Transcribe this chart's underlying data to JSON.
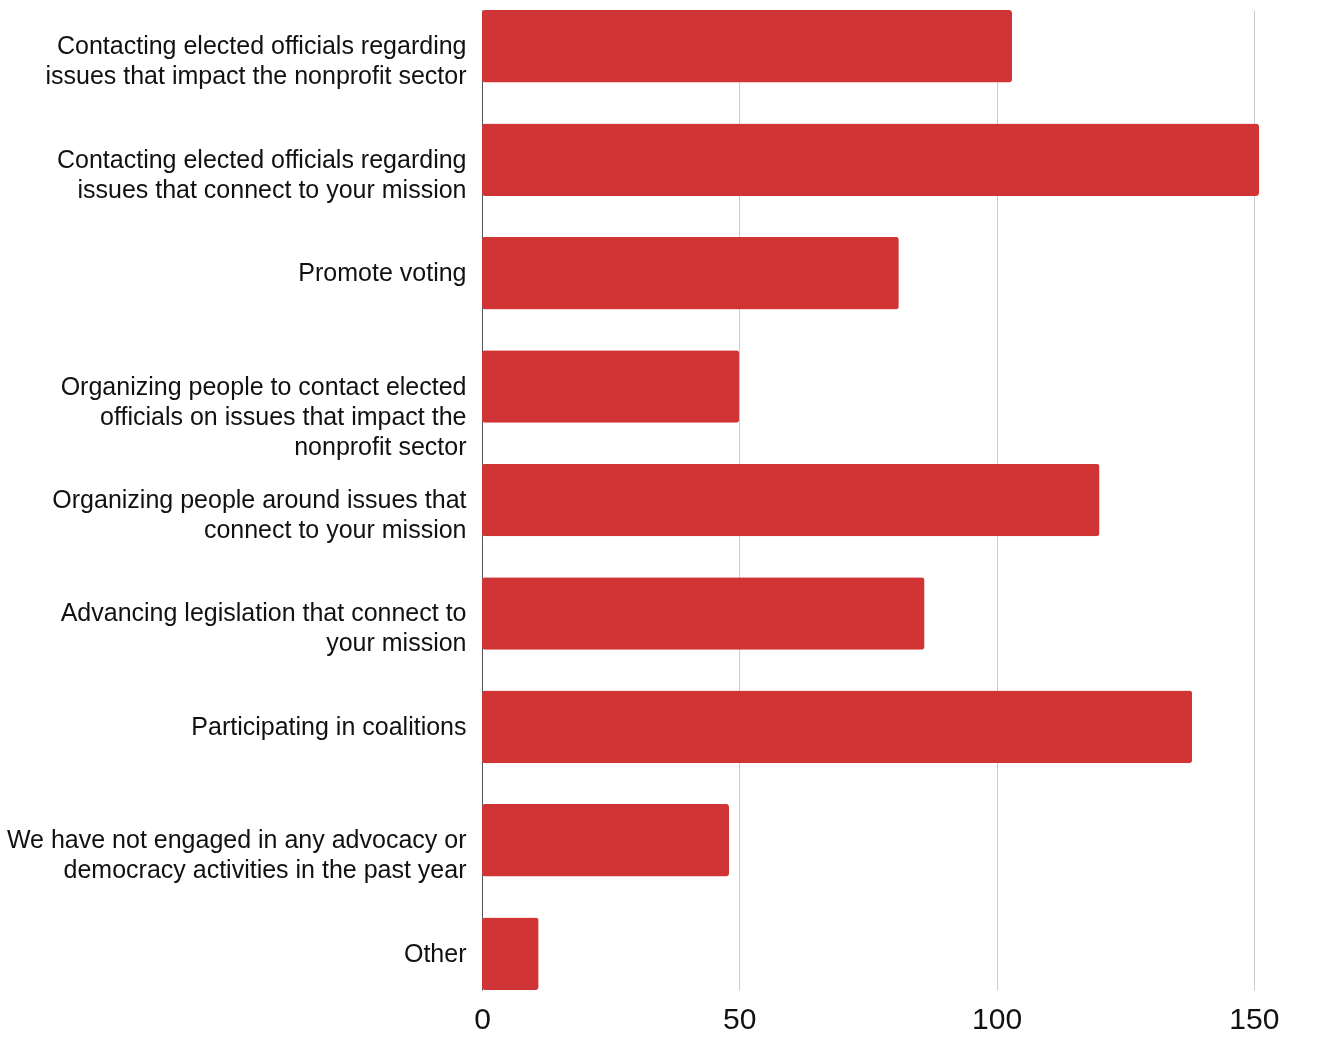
{
  "chart_data": {
    "type": "bar",
    "orientation": "horizontal",
    "categories": [
      "Contacting elected officials regarding issues that impact the nonprofit sector",
      "Contacting elected officials regarding issues that connect to your mission",
      "Promote voting",
      "Organizing people to contact elected officials on issues that impact the nonprofit sector",
      "Organizing people around issues that connect to your mission",
      "Advancing legislation that connect to your mission",
      "Participating in coalitions",
      "We have not engaged in any advocacy or democracy activities in the past year",
      "Other"
    ],
    "values": [
      103,
      151,
      81,
      50,
      120,
      86,
      138,
      48,
      11
    ],
    "color": "#d13434",
    "xlim": [
      0,
      151
    ],
    "xticks": [
      0,
      50,
      100,
      150
    ],
    "grid": "x"
  }
}
